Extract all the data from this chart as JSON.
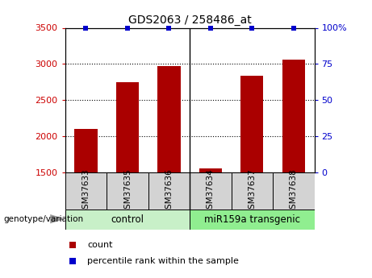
{
  "title": "GDS2063 / 258486_at",
  "samples": [
    "GSM37633",
    "GSM37635",
    "GSM37636",
    "GSM37634",
    "GSM37637",
    "GSM37638"
  ],
  "counts": [
    2100,
    2750,
    2975,
    1560,
    2840,
    3060
  ],
  "percentile_ranks": [
    100,
    100,
    100,
    100,
    100,
    100
  ],
  "ylim_left": [
    1500,
    3500
  ],
  "ylim_right": [
    0,
    100
  ],
  "yticks_left": [
    1500,
    2000,
    2500,
    3000,
    3500
  ],
  "yticks_right": [
    0,
    25,
    50,
    75,
    100
  ],
  "bar_color": "#AA0000",
  "percentile_color": "#0000CC",
  "left_tick_color": "#CC0000",
  "right_tick_color": "#0000CC",
  "title_color": "#000000",
  "background_color": "#FFFFFF",
  "plot_bg_color": "#FFFFFF",
  "control_color": "#C8F0C8",
  "transgenic_color": "#90EE90",
  "sample_box_color": "#D3D3D3",
  "legend_count_color": "#AA0000",
  "legend_percentile_color": "#0000CC",
  "group_separator": 2.5
}
